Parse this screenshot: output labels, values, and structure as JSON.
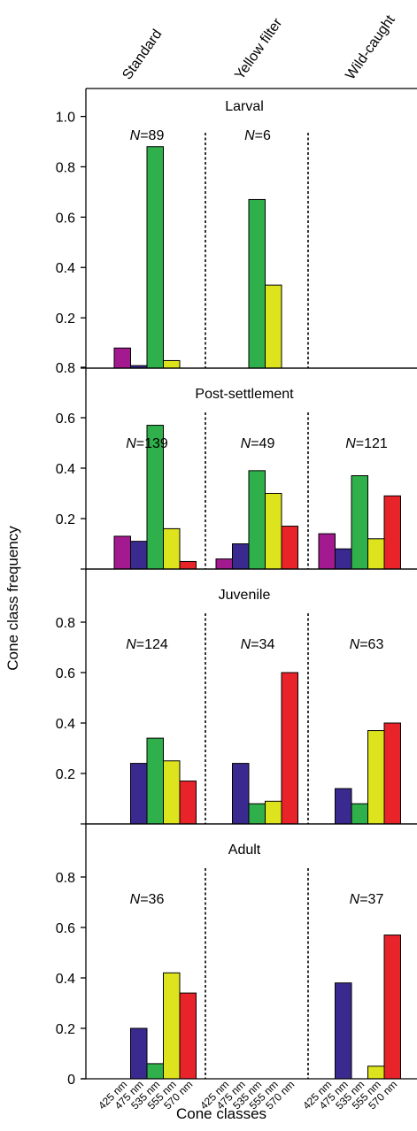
{
  "figure": {
    "ylabel": "Cone class frequency",
    "xlabel": "Cone classes",
    "conditions": [
      "Standard",
      "Yellow filter",
      "Wild-caught"
    ],
    "cone_classes": [
      "425 nm",
      "475 nm",
      "535 nm",
      "555 nm",
      "570 nm"
    ],
    "colors": {
      "425 nm": "#a3198f",
      "475 nm": "#3a2a8f",
      "535 nm": "#2fb04a",
      "555 nm": "#dde31c",
      "570 nm": "#e8232a"
    }
  },
  "chart_data": [
    {
      "type": "bar",
      "title": "Larval",
      "categories": [
        "425 nm",
        "475 nm",
        "535 nm",
        "555 nm",
        "570 nm"
      ],
      "ylim": [
        0,
        1.05
      ],
      "yticks": [
        "1.0",
        "0.8",
        "0.6",
        "0.4",
        "0.2"
      ],
      "ytick_values": [
        1.0,
        0.8,
        0.6,
        0.4,
        0.2
      ],
      "groups": [
        {
          "name": "Standard",
          "n_label": "N",
          "n_value": "=89",
          "values": [
            0.08,
            0.01,
            0.88,
            0.03,
            0
          ]
        },
        {
          "name": "Yellow filter",
          "n_label": "N",
          "n_value": "=6",
          "values": [
            0,
            0,
            0.67,
            0.33,
            0
          ]
        },
        {
          "name": "Wild-caught",
          "n_label": "",
          "n_value": "",
          "values": [
            0,
            0,
            0,
            0,
            0
          ]
        }
      ]
    },
    {
      "type": "bar",
      "title": "Post-settlement",
      "categories": [
        "425 nm",
        "475 nm",
        "535 nm",
        "555 nm",
        "570 nm"
      ],
      "ylim": [
        0,
        0.85
      ],
      "yticks": [
        "0.8",
        "0.6",
        "0.4",
        "0.2"
      ],
      "ytick_values": [
        0.8,
        0.6,
        0.4,
        0.2
      ],
      "groups": [
        {
          "name": "Standard",
          "n_label": "N",
          "n_value": "=139",
          "values": [
            0.13,
            0.11,
            0.57,
            0.16,
            0.03
          ]
        },
        {
          "name": "Yellow filter",
          "n_label": "N",
          "n_value": "=49",
          "values": [
            0.04,
            0.1,
            0.39,
            0.3,
            0.17
          ]
        },
        {
          "name": "Wild-caught",
          "n_label": "N",
          "n_value": "=121",
          "values": [
            0.14,
            0.08,
            0.37,
            0.12,
            0.29
          ]
        }
      ]
    },
    {
      "type": "bar",
      "title": "Juvenile",
      "categories": [
        "425 nm",
        "475 nm",
        "535 nm",
        "555 nm",
        "570 nm"
      ],
      "ylim": [
        0,
        0.85
      ],
      "yticks": [
        "0.8",
        "0.6",
        "0.4",
        "0.2"
      ],
      "ytick_values": [
        0.8,
        0.6,
        0.4,
        0.2
      ],
      "groups": [
        {
          "name": "Standard",
          "n_label": "N",
          "n_value": "=124",
          "values": [
            0,
            0.24,
            0.34,
            0.25,
            0.17
          ]
        },
        {
          "name": "Yellow filter",
          "n_label": "N",
          "n_value": "=34",
          "values": [
            0,
            0.24,
            0.08,
            0.09,
            0.6
          ]
        },
        {
          "name": "Wild-caught",
          "n_label": "N",
          "n_value": "=63",
          "values": [
            0,
            0.14,
            0.08,
            0.37,
            0.4
          ]
        }
      ]
    },
    {
      "type": "bar",
      "title": "Adult",
      "categories": [
        "425 nm",
        "475 nm",
        "535 nm",
        "555 nm",
        "570 nm"
      ],
      "ylim": [
        0,
        0.85
      ],
      "yticks": [
        "0.8",
        "0.6",
        "0.4",
        "0.2",
        "0"
      ],
      "ytick_values": [
        0.8,
        0.6,
        0.4,
        0.2,
        0
      ],
      "groups": [
        {
          "name": "Standard",
          "n_label": "N",
          "n_value": "=36",
          "values": [
            0,
            0.2,
            0.06,
            0.42,
            0.34
          ]
        },
        {
          "name": "Yellow filter",
          "n_label": "",
          "n_value": "",
          "values": [
            0,
            0,
            0,
            0,
            0
          ]
        },
        {
          "name": "Wild-caught",
          "n_label": "N",
          "n_value": "=37",
          "values": [
            0,
            0.38,
            0,
            0.05,
            0.57
          ]
        }
      ]
    }
  ]
}
